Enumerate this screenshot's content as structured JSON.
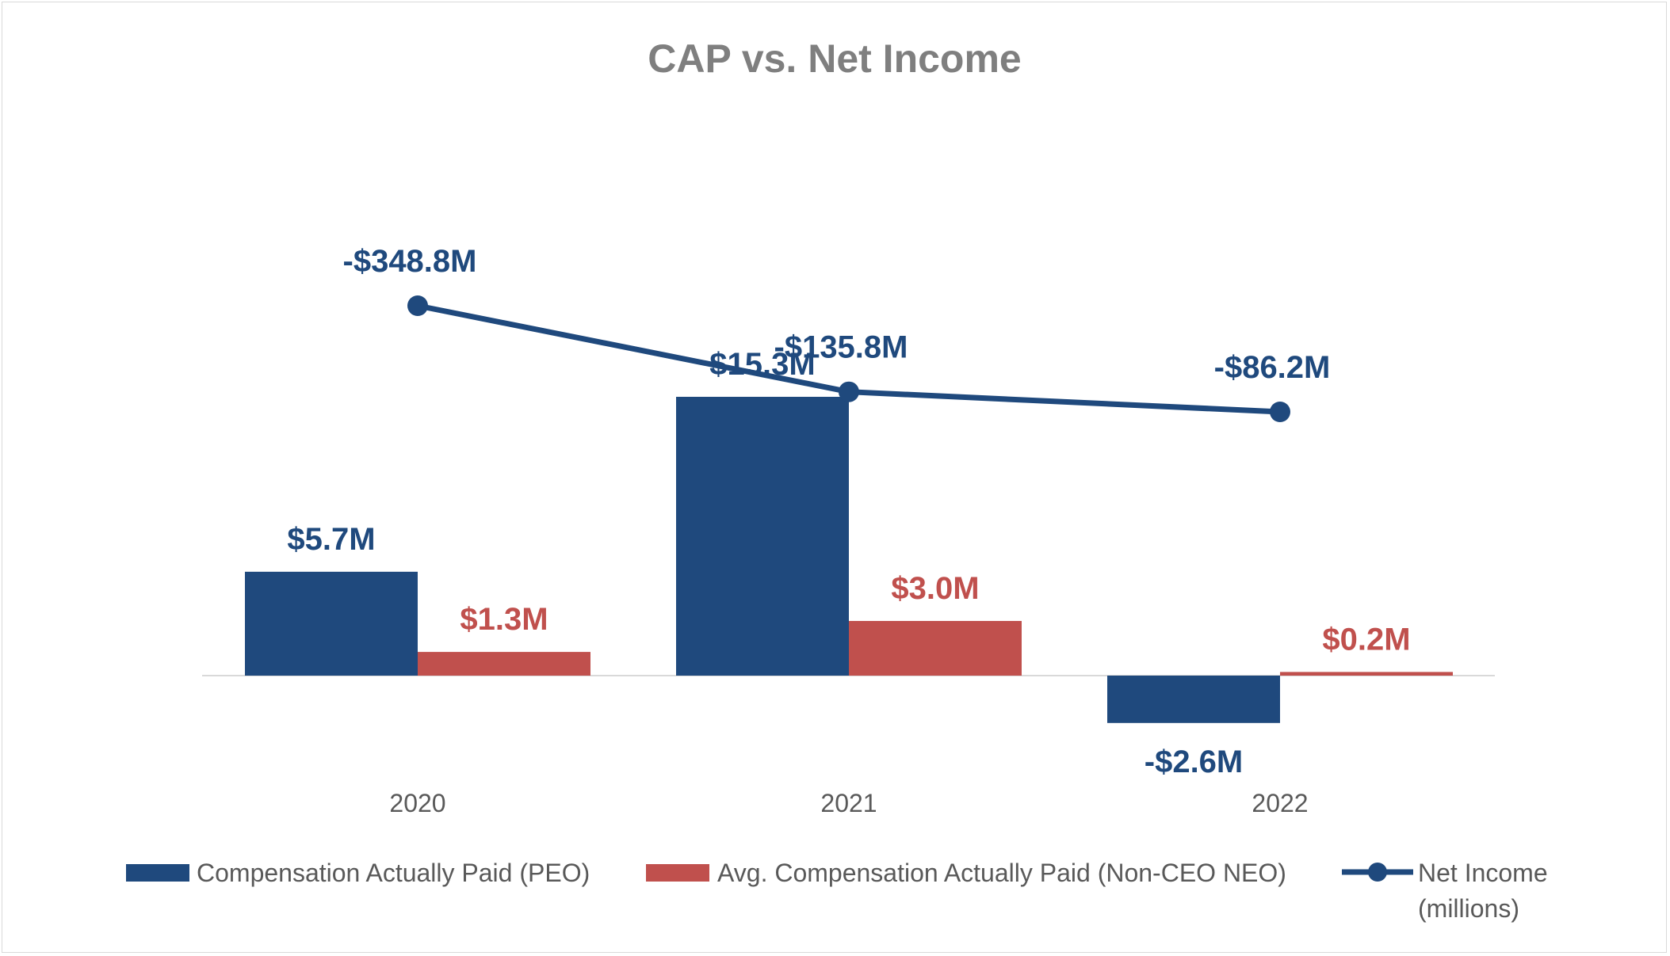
{
  "chart_data": {
    "type": "bar",
    "title": "CAP vs. Net Income",
    "categories": [
      "2020",
      "2021",
      "2022"
    ],
    "series": [
      {
        "name": "Compensation Actually Paid (PEO)",
        "kind": "bar",
        "color": "#1f497d",
        "values": [
          5.7,
          15.3,
          -2.6
        ],
        "labels": [
          "$5.7M",
          "$15.3M",
          "-$2.6M"
        ]
      },
      {
        "name": "Avg. Compensation Actually Paid (Non-CEO NEO)",
        "kind": "bar",
        "color": "#c0504d",
        "values": [
          1.3,
          3.0,
          0.2
        ],
        "labels": [
          "$1.3M",
          "$3.0M",
          "$0.2M"
        ]
      },
      {
        "name": "Net Income",
        "name_line2": "(millions)",
        "kind": "line",
        "color": "#1f497d",
        "values": [
          -348.8,
          -135.8,
          -86.2
        ],
        "labels": [
          "-$348.8M",
          "-$135.8M",
          "-$86.2M"
        ]
      }
    ],
    "legend_position": "bottom",
    "grid": false
  }
}
